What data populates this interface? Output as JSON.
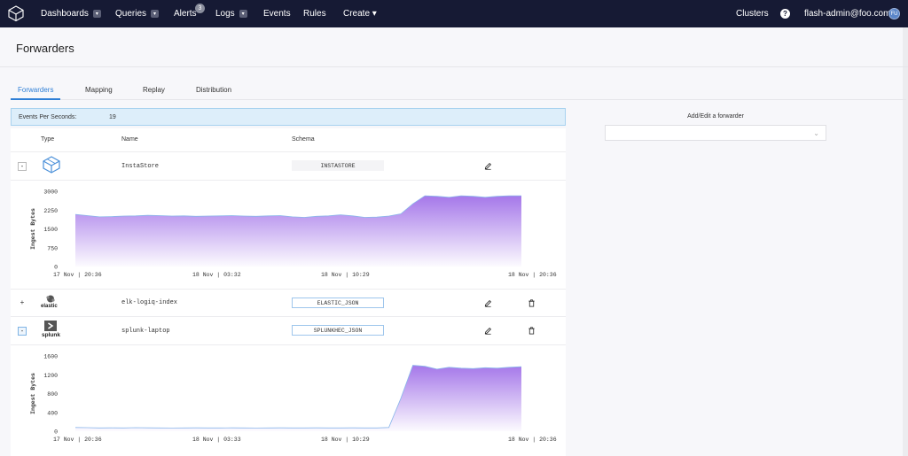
{
  "nav": {
    "items": [
      {
        "label": "Dashboards",
        "dropdown": true
      },
      {
        "label": "Queries",
        "dropdown": true
      },
      {
        "label": "Alerts",
        "badge": "3"
      },
      {
        "label": "Logs",
        "dropdown": true
      },
      {
        "label": "Events"
      },
      {
        "label": "Rules"
      },
      {
        "label": "Create ▾"
      }
    ],
    "clusters": "Clusters",
    "user": "flash-admin@foo.com",
    "avatar": "FU"
  },
  "page": {
    "title": "Forwarders"
  },
  "tabs": [
    "Forwarders",
    "Mapping",
    "Replay",
    "Distribution"
  ],
  "eps": {
    "label": "Events Per Seconds:",
    "value": "19"
  },
  "table": {
    "headers": [
      "Type",
      "Name",
      "Schema"
    ],
    "rows": [
      {
        "toggle": "-",
        "type_icon": "instastore-logo-icon",
        "name": "InstaStore",
        "schema": "INSTASTORE"
      },
      {
        "toggle": "+",
        "type_icon": "elastic-logo-icon",
        "type_text": "elastic",
        "name": "elk-logiq-index",
        "schema": "ELASTIC_JSON"
      },
      {
        "toggle": "-",
        "type_icon": "splunk-logo-icon",
        "type_text": "splunk",
        "name": "splunk-laptop",
        "schema": "SPLUNKHEC_JSON"
      }
    ]
  },
  "right": {
    "title": "Add/Edit a forwarder"
  },
  "chart_data": [
    {
      "type": "area",
      "ylabel": "Ingest Bytes",
      "ylim": [
        0,
        3000
      ],
      "yticks": [
        "0",
        "750",
        "1500",
        "2250",
        "3000"
      ],
      "xticks": [
        "17 Nov | 20:36",
        "18 Nov | 03:32",
        "18 Nov | 10:29",
        "18 Nov | 20:36"
      ],
      "color": "#a070e8",
      "values": [
        2080,
        2030,
        1980,
        1990,
        2010,
        2020,
        2040,
        2030,
        2010,
        2020,
        2000,
        2010,
        2020,
        2030,
        2010,
        2000,
        2020,
        2030,
        1980,
        1960,
        2000,
        2020,
        2060,
        2020,
        1960,
        1970,
        2010,
        2100,
        2500,
        2820,
        2800,
        2760,
        2820,
        2800,
        2760,
        2800,
        2820,
        2820
      ]
    },
    {
      "type": "area",
      "ylabel": "Ingest Bytes",
      "ylim": [
        0,
        1600
      ],
      "yticks": [
        "0",
        "400",
        "800",
        "1200",
        "1600"
      ],
      "xticks": [
        "17 Nov | 20:36",
        "18 Nov | 03:33",
        "18 Nov | 10:29",
        "18 Nov | 20:36"
      ],
      "color": "#a070e8",
      "values": [
        80,
        75,
        70,
        72,
        70,
        75,
        72,
        70,
        68,
        70,
        72,
        70,
        70,
        72,
        70,
        68,
        70,
        72,
        70,
        70,
        72,
        70,
        70,
        72,
        70,
        70,
        80,
        700,
        1400,
        1380,
        1320,
        1360,
        1340,
        1330,
        1350,
        1340,
        1360,
        1370
      ]
    }
  ]
}
